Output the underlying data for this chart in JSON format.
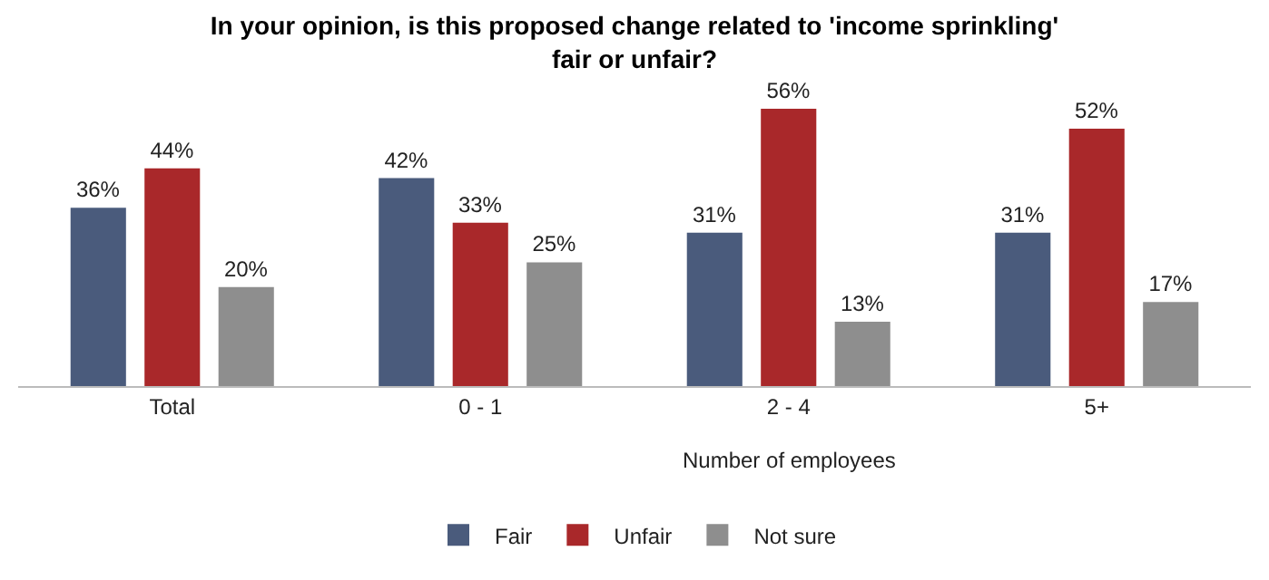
{
  "chart_data": {
    "type": "bar",
    "title": "In your opinion, is this proposed change related to 'income sprinkling'\nfair or unfair?",
    "categories": [
      "Total",
      "0 - 1",
      "2 - 4",
      "5+"
    ],
    "annotations": [
      "Number of employees"
    ],
    "legend": "bottom",
    "series": [
      {
        "name": "Fair",
        "color": "#4a5b7c",
        "values": [
          36,
          42,
          31,
          31
        ],
        "value_labels": [
          "36%",
          "42%",
          "31%",
          "31%"
        ]
      },
      {
        "name": "Unfair",
        "color": "#a9282a",
        "values": [
          44,
          33,
          56,
          52
        ],
        "value_labels": [
          "44%",
          "33%",
          "56%",
          "52%"
        ]
      },
      {
        "name": "Not sure",
        "color": "#8e8e8e",
        "values": [
          20,
          25,
          13,
          17
        ],
        "value_labels": [
          "20%",
          "25%",
          "13%",
          "17%"
        ]
      }
    ]
  }
}
